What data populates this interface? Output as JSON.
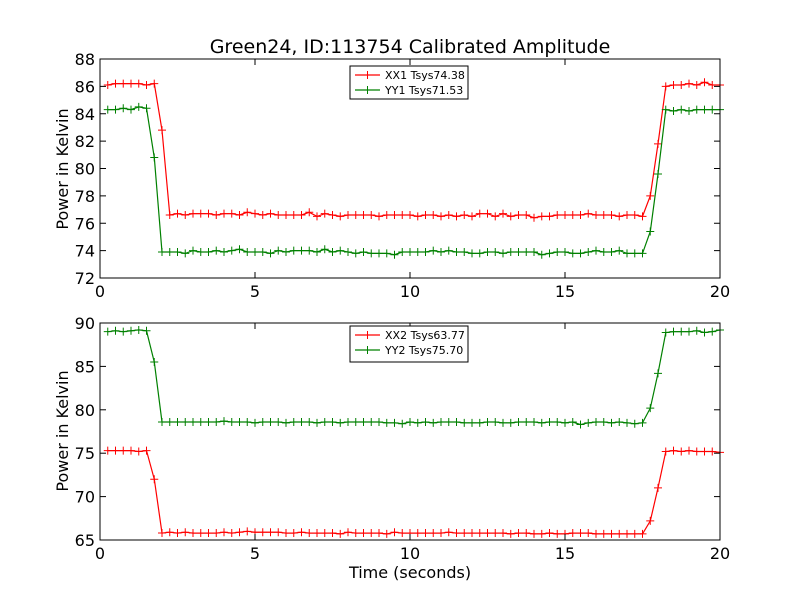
{
  "chart_data": [
    {
      "type": "line",
      "title": "Green24, ID:113754 Calibrated Amplitude",
      "xlabel": "",
      "ylabel": "Power in Kelvin",
      "xlim": [
        0,
        20
      ],
      "ylim": [
        72,
        88
      ],
      "xticks": [
        0,
        5,
        10,
        15,
        20
      ],
      "yticks": [
        72,
        74,
        76,
        78,
        80,
        82,
        84,
        86,
        88
      ],
      "legend_position": "top-center",
      "grid": false,
      "x": [
        0.25,
        0.5,
        0.75,
        1.0,
        1.25,
        1.5,
        1.75,
        2.0,
        2.25,
        2.5,
        2.75,
        3.0,
        3.25,
        3.5,
        3.75,
        4.0,
        4.25,
        4.5,
        4.75,
        5.0,
        5.25,
        5.5,
        5.75,
        6.0,
        6.25,
        6.5,
        6.75,
        7.0,
        7.25,
        7.5,
        7.75,
        8.0,
        8.25,
        8.5,
        8.75,
        9.0,
        9.25,
        9.5,
        9.75,
        10.0,
        10.25,
        10.5,
        10.75,
        11.0,
        11.25,
        11.5,
        11.75,
        12.0,
        12.25,
        12.5,
        12.75,
        13.0,
        13.25,
        13.5,
        13.75,
        14.0,
        14.25,
        14.5,
        14.75,
        15.0,
        15.25,
        15.5,
        15.75,
        16.0,
        16.25,
        16.5,
        16.75,
        17.0,
        17.25,
        17.5,
        17.75,
        18.0,
        18.25,
        18.5,
        18.75,
        19.0,
        19.25,
        19.5,
        19.75,
        20.0
      ],
      "series": [
        {
          "name": "XX1 Tsys74.38",
          "color": "#ff0000",
          "values": [
            86.1,
            86.2,
            86.2,
            86.2,
            86.2,
            86.1,
            86.2,
            82.8,
            76.6,
            76.7,
            76.6,
            76.7,
            76.7,
            76.7,
            76.6,
            76.7,
            76.7,
            76.6,
            76.8,
            76.7,
            76.6,
            76.7,
            76.6,
            76.6,
            76.6,
            76.6,
            76.8,
            76.5,
            76.7,
            76.6,
            76.5,
            76.6,
            76.6,
            76.6,
            76.6,
            76.5,
            76.6,
            76.6,
            76.6,
            76.6,
            76.5,
            76.6,
            76.6,
            76.5,
            76.6,
            76.5,
            76.6,
            76.5,
            76.7,
            76.7,
            76.5,
            76.7,
            76.5,
            76.6,
            76.6,
            76.4,
            76.5,
            76.5,
            76.6,
            76.6,
            76.6,
            76.6,
            76.7,
            76.6,
            76.6,
            76.6,
            76.5,
            76.6,
            76.6,
            76.5,
            78.0,
            81.8,
            86.0,
            86.1,
            86.1,
            86.2,
            86.1,
            86.3,
            86.1,
            86.1
          ]
        },
        {
          "name": "YY1 Tsys71.53",
          "color": "#008000",
          "values": [
            84.3,
            84.3,
            84.4,
            84.3,
            84.5,
            84.4,
            80.8,
            73.9,
            73.9,
            73.9,
            73.8,
            74.0,
            73.9,
            73.9,
            74.0,
            73.9,
            74.0,
            74.1,
            73.9,
            73.9,
            73.9,
            73.8,
            74.0,
            73.9,
            74.0,
            74.0,
            74.0,
            73.9,
            74.1,
            73.9,
            74.0,
            73.9,
            73.8,
            73.9,
            73.8,
            73.8,
            73.8,
            73.7,
            73.9,
            73.9,
            73.9,
            73.9,
            74.0,
            73.9,
            74.0,
            73.9,
            73.9,
            73.8,
            73.8,
            73.9,
            73.9,
            73.8,
            73.9,
            73.9,
            73.9,
            73.9,
            73.7,
            73.8,
            73.9,
            73.9,
            73.8,
            73.8,
            73.9,
            74.0,
            73.9,
            73.9,
            74.0,
            73.8,
            73.8,
            73.8,
            75.4,
            79.6,
            84.3,
            84.2,
            84.3,
            84.2,
            84.3,
            84.3,
            84.3,
            84.3
          ]
        }
      ]
    },
    {
      "type": "line",
      "title": "",
      "xlabel": "Time (seconds)",
      "ylabel": "Power in Kelvin",
      "xlim": [
        0,
        20
      ],
      "ylim": [
        65,
        90
      ],
      "xticks": [
        0,
        5,
        10,
        15,
        20
      ],
      "yticks": [
        65,
        70,
        75,
        80,
        85,
        90
      ],
      "legend_position": "top-center",
      "grid": false,
      "x": [
        0.25,
        0.5,
        0.75,
        1.0,
        1.25,
        1.5,
        1.75,
        2.0,
        2.25,
        2.5,
        2.75,
        3.0,
        3.25,
        3.5,
        3.75,
        4.0,
        4.25,
        4.5,
        4.75,
        5.0,
        5.25,
        5.5,
        5.75,
        6.0,
        6.25,
        6.5,
        6.75,
        7.0,
        7.25,
        7.5,
        7.75,
        8.0,
        8.25,
        8.5,
        8.75,
        9.0,
        9.25,
        9.5,
        9.75,
        10.0,
        10.25,
        10.5,
        10.75,
        11.0,
        11.25,
        11.5,
        11.75,
        12.0,
        12.25,
        12.5,
        12.75,
        13.0,
        13.25,
        13.5,
        13.75,
        14.0,
        14.25,
        14.5,
        14.75,
        15.0,
        15.25,
        15.5,
        15.75,
        16.0,
        16.25,
        16.5,
        16.75,
        17.0,
        17.25,
        17.5,
        17.75,
        18.0,
        18.25,
        18.5,
        18.75,
        19.0,
        19.25,
        19.5,
        19.75,
        20.0
      ],
      "series": [
        {
          "name": "XX2 Tsys63.77",
          "color": "#ff0000",
          "values": [
            75.3,
            75.3,
            75.3,
            75.3,
            75.2,
            75.3,
            72.0,
            65.8,
            65.9,
            65.8,
            65.9,
            65.8,
            65.8,
            65.8,
            65.8,
            65.9,
            65.8,
            65.9,
            66.0,
            65.9,
            65.9,
            65.9,
            65.9,
            65.8,
            65.8,
            65.9,
            65.8,
            65.8,
            65.8,
            65.8,
            65.7,
            65.9,
            65.8,
            65.8,
            65.8,
            65.8,
            65.7,
            65.9,
            65.8,
            65.8,
            65.8,
            65.8,
            65.8,
            65.8,
            65.9,
            65.8,
            65.8,
            65.8,
            65.8,
            65.8,
            65.8,
            65.8,
            65.7,
            65.8,
            65.8,
            65.7,
            65.7,
            65.8,
            65.7,
            65.7,
            65.8,
            65.8,
            65.8,
            65.7,
            65.7,
            65.7,
            65.7,
            65.7,
            65.7,
            65.7,
            67.2,
            71.0,
            75.2,
            75.3,
            75.2,
            75.3,
            75.2,
            75.2,
            75.2,
            75.1
          ]
        },
        {
          "name": "YY2 Tsys75.70",
          "color": "#008000",
          "values": [
            89.0,
            89.1,
            89.0,
            89.1,
            89.2,
            89.1,
            85.5,
            78.6,
            78.6,
            78.6,
            78.6,
            78.6,
            78.6,
            78.6,
            78.6,
            78.7,
            78.6,
            78.6,
            78.6,
            78.5,
            78.6,
            78.6,
            78.6,
            78.5,
            78.6,
            78.6,
            78.6,
            78.5,
            78.6,
            78.6,
            78.5,
            78.6,
            78.6,
            78.6,
            78.6,
            78.6,
            78.5,
            78.5,
            78.4,
            78.6,
            78.5,
            78.6,
            78.5,
            78.6,
            78.6,
            78.6,
            78.5,
            78.5,
            78.5,
            78.6,
            78.6,
            78.5,
            78.5,
            78.6,
            78.6,
            78.6,
            78.5,
            78.6,
            78.6,
            78.5,
            78.6,
            78.3,
            78.5,
            78.6,
            78.6,
            78.5,
            78.6,
            78.5,
            78.4,
            78.5,
            80.2,
            84.2,
            88.9,
            89.0,
            89.0,
            89.0,
            89.1,
            88.9,
            89.0,
            89.2
          ]
        }
      ]
    }
  ]
}
